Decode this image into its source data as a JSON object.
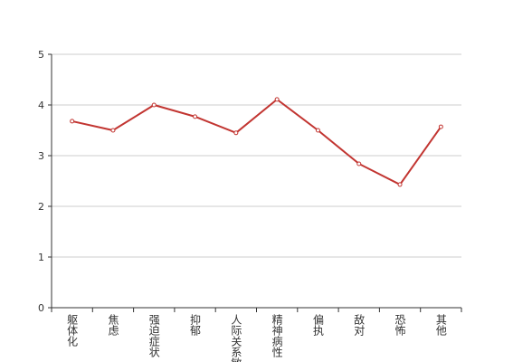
{
  "chart_data": {
    "type": "line",
    "categories": [
      "躯体化",
      "焦虑",
      "强迫症状",
      "抑郁",
      "人际关系敏感",
      "精神病性",
      "偏执",
      "敌对",
      "恐怖",
      "其他"
    ],
    "series": [
      {
        "color": "#c23531",
        "values": [
          3.68,
          3.5,
          4.0,
          3.77,
          3.45,
          4.11,
          3.5,
          2.84,
          2.43,
          3.57
        ]
      }
    ],
    "ylim": [
      0,
      5
    ],
    "yticks": [
      0,
      1,
      2,
      3,
      4,
      5
    ],
    "grid": true
  }
}
